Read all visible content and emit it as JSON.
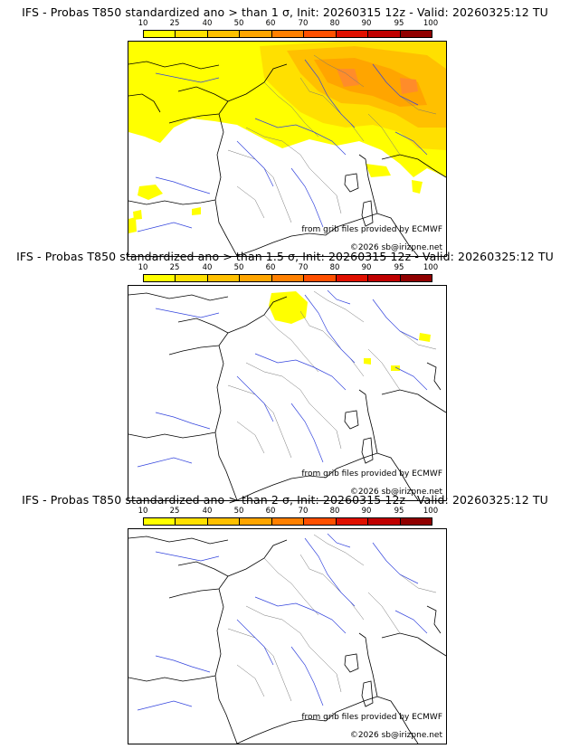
{
  "colorbar": {
    "levels": [
      "10",
      "25",
      "40",
      "50",
      "60",
      "70",
      "80",
      "90",
      "95",
      "100"
    ],
    "colors": [
      "#ffff00",
      "#ffe000",
      "#ffc000",
      "#ffa500",
      "#ff8000",
      "#ff5000",
      "#e01000",
      "#c00000",
      "#900000",
      "#600000"
    ]
  },
  "panels": [
    {
      "title": "IFS - Probas T850  standardized ano > than 1 σ, Init: 20260315 12z - Valid: 20260325:12 TU",
      "source": "from grib files provided by ECMWF",
      "copyright": "©2026 sb@irizpne.net"
    },
    {
      "title": "IFS - Probas T850  standardized ano > than 1.5 σ, Init: 20260315 12z - Valid: 20260325:12 TU",
      "source": "from grib files provided by ECMWF",
      "copyright": "©2026 sb@irizpne.net"
    },
    {
      "title": "IFS - Probas T850  standardized ano > than 2 σ, Init: 20260315 12z - Valid: 20260325:12 TU",
      "source": "from grib files provided by ECMWF",
      "copyright": "©2026 sb@irizpne.net"
    }
  ]
}
